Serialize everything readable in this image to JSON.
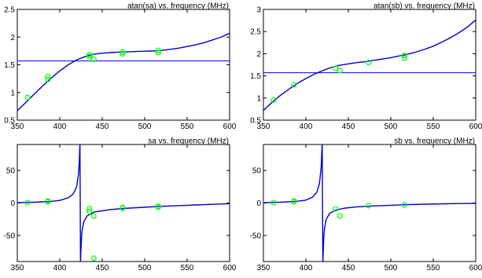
{
  "figure": {
    "colors": {
      "curve": "#0000c8",
      "hline": "#0000ff",
      "marker": "#00ff00",
      "axes": "#000000"
    }
  },
  "chart_data": [
    {
      "type": "line",
      "title": "atan(sa) vs. frequency (MHz)",
      "xlabel": "",
      "ylabel": "",
      "xlim": [
        350,
        600
      ],
      "ylim": [
        0.5,
        2.5
      ],
      "xticks": [
        "350",
        "400",
        "450",
        "500",
        "550",
        "600"
      ],
      "yticks": [
        "0.5",
        "1",
        "1.5",
        "2",
        "2.5"
      ],
      "grid": false,
      "curve": {
        "x": [
          350,
          360,
          370,
          380,
          390,
          400,
          410,
          420,
          430,
          440,
          450,
          460,
          470,
          480,
          490,
          500,
          510,
          520,
          530,
          540,
          550,
          560,
          570,
          580,
          590,
          600
        ],
        "y": [
          0.67,
          0.82,
          0.97,
          1.12,
          1.26,
          1.39,
          1.5,
          1.59,
          1.65,
          1.69,
          1.71,
          1.72,
          1.73,
          1.735,
          1.74,
          1.745,
          1.75,
          1.76,
          1.78,
          1.8,
          1.83,
          1.86,
          1.9,
          1.95,
          2.0,
          2.07
        ]
      },
      "hline": 1.57,
      "markers": {
        "x": [
          362,
          386,
          386,
          435,
          435,
          440,
          474,
          474,
          516,
          516
        ],
        "y": [
          0.91,
          1.24,
          1.29,
          1.68,
          1.65,
          1.6,
          1.7,
          1.73,
          1.72,
          1.76
        ]
      }
    },
    {
      "type": "line",
      "title": "atan(sb) vs. frequency (MHz)",
      "xlabel": "",
      "ylabel": "",
      "xlim": [
        350,
        600
      ],
      "ylim": [
        0.5,
        3
      ],
      "xticks": [
        "350",
        "400",
        "450",
        "500",
        "550",
        "600"
      ],
      "yticks": [
        "0.5",
        "1",
        "1.5",
        "2",
        "2.5",
        "3"
      ],
      "grid": false,
      "curve": {
        "x": [
          350,
          360,
          370,
          380,
          390,
          400,
          410,
          420,
          430,
          440,
          450,
          460,
          470,
          480,
          490,
          500,
          510,
          520,
          530,
          540,
          550,
          560,
          570,
          580,
          590,
          600
        ],
        "y": [
          0.72,
          0.9,
          1.06,
          1.2,
          1.33,
          1.44,
          1.54,
          1.62,
          1.69,
          1.74,
          1.77,
          1.8,
          1.82,
          1.85,
          1.88,
          1.91,
          1.95,
          1.99,
          2.04,
          2.1,
          2.17,
          2.26,
          2.36,
          2.47,
          2.6,
          2.76
        ]
      },
      "hline": 1.57,
      "markers": {
        "x": [
          362,
          386,
          435,
          440,
          474,
          516,
          516
        ],
        "y": [
          0.95,
          1.3,
          1.67,
          1.62,
          1.8,
          1.9,
          1.96
        ]
      }
    },
    {
      "type": "line",
      "title": "sa vs. frequency (MHz)",
      "xlabel": "",
      "ylabel": "",
      "xlim": [
        350,
        600
      ],
      "ylim": [
        -90,
        90
      ],
      "xticks": [
        "350",
        "400",
        "450",
        "500",
        "550",
        "600"
      ],
      "yticks": [
        "-50",
        "0",
        "50"
      ],
      "grid": false,
      "curve": {
        "x": [
          350,
          370,
          390,
          400,
          410,
          415,
          418,
          420,
          422,
          423,
          423.8,
          424.4,
          425,
          426,
          428,
          432,
          440,
          460,
          480,
          500,
          520,
          550,
          580,
          600
        ],
        "y": [
          0.5,
          1.2,
          2.5,
          4,
          8,
          13,
          19,
          26,
          44,
          64,
          92,
          -92,
          -70,
          -45,
          -30,
          -20,
          -14,
          -10,
          -8,
          -6.5,
          -5,
          -3.5,
          -2,
          -1
        ]
      },
      "markers": {
        "x": [
          362,
          386,
          386,
          435,
          435,
          440,
          440,
          474,
          474,
          516,
          516
        ],
        "y": [
          0.5,
          2,
          3,
          -9,
          -13,
          -20,
          -85,
          -7,
          -8,
          -6,
          -5
        ]
      }
    },
    {
      "type": "line",
      "title": "sb vs. frequency (MHz)",
      "xlabel": "",
      "ylabel": "",
      "xlim": [
        350,
        600
      ],
      "ylim": [
        -90,
        90
      ],
      "xticks": [
        "350",
        "400",
        "450",
        "500",
        "550",
        "600"
      ],
      "yticks": [
        "-50",
        "0",
        "50"
      ],
      "grid": false,
      "curve": {
        "x": [
          350,
          370,
          390,
          400,
          408,
          413,
          416,
          418,
          419.2,
          420,
          421,
          422,
          424,
          428,
          435,
          445,
          460,
          480,
          500,
          520,
          550,
          580,
          600
        ],
        "y": [
          0.5,
          1.2,
          2.6,
          4.5,
          9,
          17,
          30,
          55,
          92,
          -92,
          -55,
          -38,
          -25,
          -16,
          -11,
          -8,
          -6,
          -4.5,
          -3.5,
          -2.5,
          -1.5,
          -0.8,
          -0.5
        ]
      },
      "markers": {
        "x": [
          362,
          386,
          386,
          435,
          440,
          474,
          516
        ],
        "y": [
          0.5,
          2,
          3,
          -9,
          -20,
          -4,
          -3
        ]
      }
    }
  ]
}
